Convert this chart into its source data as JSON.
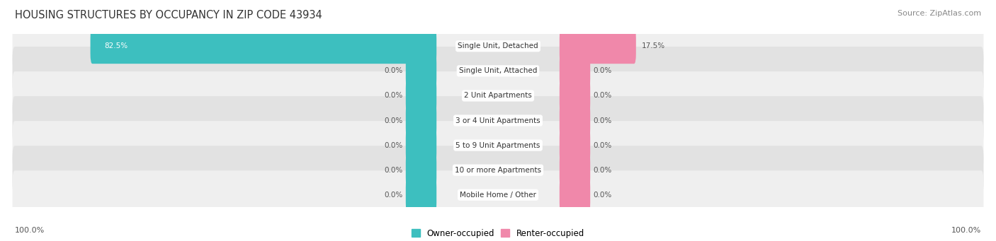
{
  "title": "HOUSING STRUCTURES BY OCCUPANCY IN ZIP CODE 43934",
  "source": "Source: ZipAtlas.com",
  "categories": [
    "Single Unit, Detached",
    "Single Unit, Attached",
    "2 Unit Apartments",
    "3 or 4 Unit Apartments",
    "5 to 9 Unit Apartments",
    "10 or more Apartments",
    "Mobile Home / Other"
  ],
  "owner_values": [
    82.5,
    0.0,
    0.0,
    0.0,
    0.0,
    0.0,
    0.0
  ],
  "renter_values": [
    17.5,
    0.0,
    0.0,
    0.0,
    0.0,
    0.0,
    0.0
  ],
  "owner_color": "#3dbfbf",
  "renter_color": "#f088aa",
  "row_bg_even": "#efefef",
  "row_bg_odd": "#e2e2e2",
  "label_color": "#555555",
  "title_color": "#333333",
  "background_color": "#ffffff",
  "axis_label_left": "100.0%",
  "axis_label_right": "100.0%",
  "legend_owner": "Owner-occupied",
  "legend_renter": "Renter-occupied"
}
